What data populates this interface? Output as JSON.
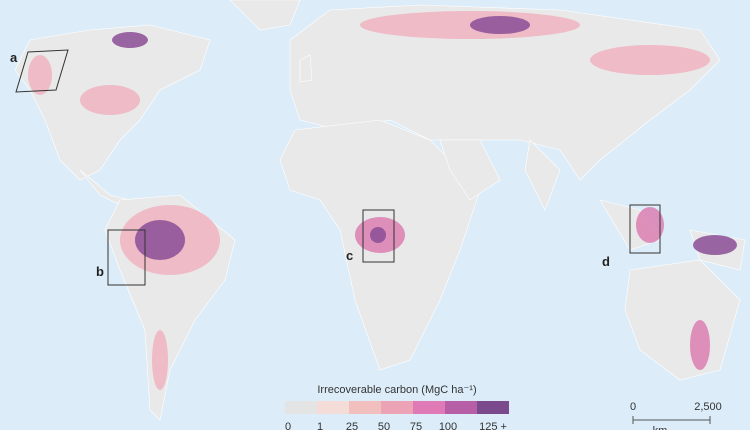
{
  "panel_labels": [
    "a",
    "b",
    "c",
    "d"
  ],
  "legend": {
    "title": "Irrecoverable carbon (MgC ha⁻¹)",
    "bins": [
      {
        "label": "0",
        "color": "#e4e4e4"
      },
      {
        "label": "1",
        "color": "#f4dcd8"
      },
      {
        "label": "25",
        "color": "#f1c0be"
      },
      {
        "label": "50",
        "color": "#eda3b6"
      },
      {
        "label": "75",
        "color": "#e07ab6"
      },
      {
        "label": "100",
        "color": "#b65ea6"
      },
      {
        "label": "125 +",
        "color": "#7a4a8c"
      }
    ]
  },
  "scale_bar": {
    "labels": [
      "0",
      "2,500"
    ],
    "unit": "km"
  }
}
